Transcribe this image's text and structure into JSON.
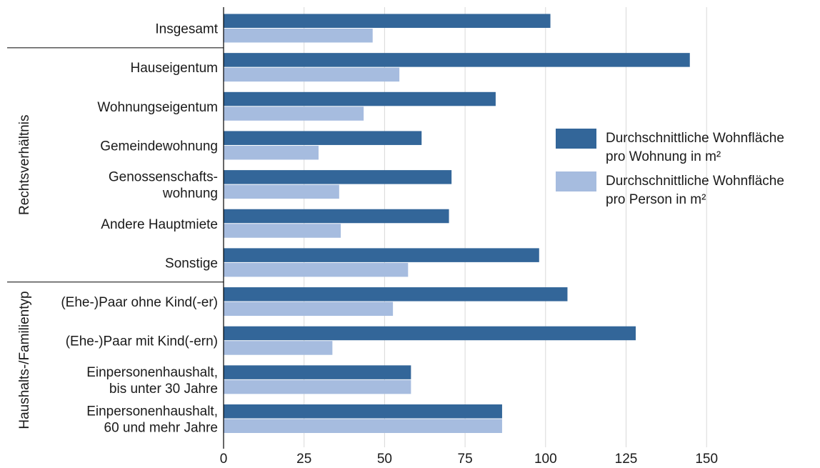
{
  "chart_data": {
    "type": "bar",
    "orientation": "horizontal",
    "title": "",
    "xlabel": "",
    "ylabel": "",
    "xlim": [
      0,
      155
    ],
    "xticks": [
      0,
      25,
      50,
      75,
      100,
      125,
      150
    ],
    "grid": true,
    "legend_position": "right",
    "groups": [
      {
        "label": "Rechtsverhältnis",
        "from": 1,
        "to": 6
      },
      {
        "label": "Haushalts-/Familientyp",
        "from": 7,
        "to": 10
      }
    ],
    "categories": [
      [
        "Insgesamt"
      ],
      [
        "Hauseigentum"
      ],
      [
        "Wohnungseigentum"
      ],
      [
        "Gemeindewohnung"
      ],
      [
        "Genossenschafts-",
        "wohnung"
      ],
      [
        "Andere Hauptmiete"
      ],
      [
        "Sonstige"
      ],
      [
        "(Ehe-)Paar ohne Kind(-er)"
      ],
      [
        "(Ehe-)Paar mit Kind(-ern)"
      ],
      [
        "Einpersonenhaushalt,",
        "bis unter 30 Jahre"
      ],
      [
        "Einpersonenhaushalt,",
        "60 und mehr Jahre"
      ]
    ],
    "series": [
      {
        "name": [
          "Durchschnittliche Wohnfläche",
          "pro Wohnung in m²"
        ],
        "color": "#336699",
        "values": [
          101.5,
          144.8,
          84.5,
          61.5,
          70.8,
          70.0,
          98.0,
          106.8,
          128.0,
          58.2,
          86.5
        ]
      },
      {
        "name": [
          "Durchschnittliche Wohnfläche",
          "pro Person in m²"
        ],
        "color": "#a6bcdf",
        "values": [
          46.3,
          54.6,
          43.5,
          29.5,
          35.9,
          36.4,
          57.3,
          52.6,
          33.8,
          58.2,
          86.5
        ]
      }
    ]
  }
}
